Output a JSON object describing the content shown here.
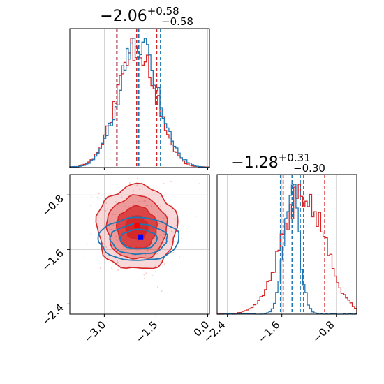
{
  "chart_data": {
    "type": "corner",
    "colors": {
      "series_a": "#d62728",
      "series_b": "#1f77b4"
    },
    "grid": true,
    "panels": {
      "hist_x": {
        "type": "histogram",
        "title": {
          "median": "−2.06",
          "plus": "+0.58",
          "minus": "−0.58"
        },
        "xlim": [
          -4.0,
          0.05
        ],
        "series": [
          {
            "color_key": "series_a",
            "mean": -2.06,
            "sd": 0.55,
            "quantile_lines": [
              -2.64,
              -2.06,
              -1.48
            ]
          },
          {
            "color_key": "series_b",
            "mean": -2.0,
            "sd": 0.56,
            "quantile_lines": [
              -2.63,
              -2.0,
              -1.37
            ]
          }
        ]
      },
      "joint": {
        "type": "contour-2d",
        "xlim": [
          -4.0,
          0.05
        ],
        "ylim": [
          -2.55,
          -0.5
        ],
        "xticks": [
          -3.0,
          -1.5,
          0.0
        ],
        "xtick_labels": [
          "−3.0",
          "−1.5",
          "0.0"
        ],
        "yticks": [
          -0.8,
          -1.6,
          -2.4
        ],
        "ytick_labels": [
          "−0.8",
          "−1.6",
          "−2.4"
        ],
        "series": [
          {
            "color_key": "series_a",
            "center": [
              -2.06,
              -1.28
            ],
            "sx": 0.58,
            "sy": 0.31,
            "marker": [
              -2.05,
              -1.25
            ],
            "filled": true
          },
          {
            "color_key": "series_b",
            "center": [
              -2.0,
              -1.45
            ],
            "sx": 0.56,
            "sy": 0.11,
            "marker": [
              -1.95,
              -1.42
            ],
            "filled": false
          }
        ]
      },
      "hist_y": {
        "type": "histogram",
        "title": {
          "median": "−1.28",
          "plus": "+0.31",
          "minus": "−0.30"
        },
        "xlim": [
          -2.55,
          -0.5
        ],
        "xticks": [
          -2.4,
          -1.6,
          -0.8
        ],
        "xtick_labels": [
          "−2.4",
          "−1.6",
          "−0.8"
        ],
        "series": [
          {
            "color_key": "series_a",
            "mean": -1.28,
            "sd": 0.31,
            "quantile_lines": [
              -1.58,
              -1.28,
              -0.97
            ]
          },
          {
            "color_key": "series_b",
            "mean": -1.46,
            "sd": 0.11,
            "quantile_lines": [
              -1.62,
              -1.45,
              -1.33
            ]
          }
        ]
      }
    }
  }
}
